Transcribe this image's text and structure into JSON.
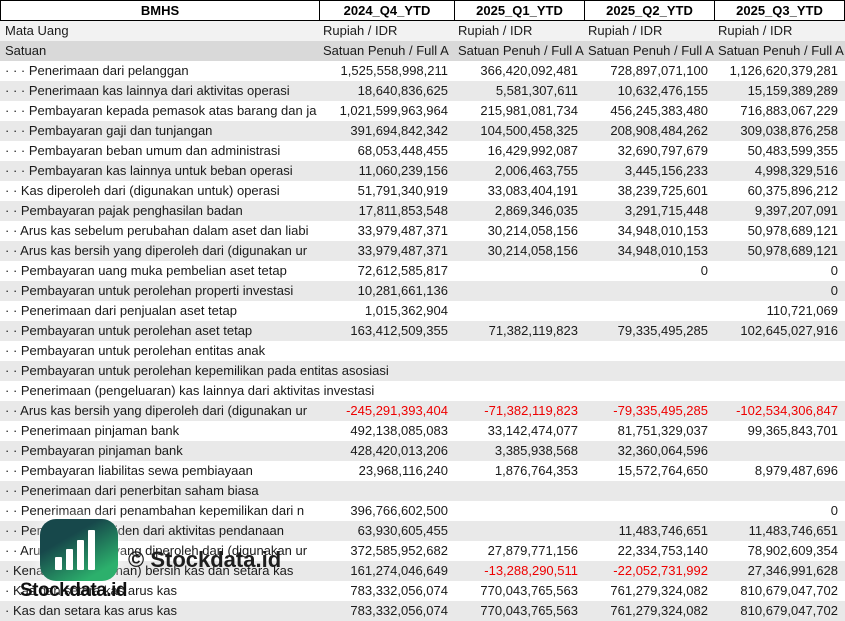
{
  "header": {
    "company": "BMHS",
    "periods": [
      "2024_Q4_YTD",
      "2025_Q1_YTD",
      "2025_Q2_YTD",
      "2025_Q3_YTD"
    ]
  },
  "currency_row": {
    "label": "Mata Uang",
    "value": "Rupiah / IDR"
  },
  "unit_row": {
    "label": "Satuan",
    "value": "Satuan Penuh / Full A"
  },
  "rows": [
    {
      "label": "· · · Penerimaan dari pelanggan",
      "values": [
        "1,525,558,998,211",
        "366,420,092,481",
        "728,897,071,100",
        "1,126,620,379,281"
      ]
    },
    {
      "label": "· · · Penerimaan kas lainnya dari aktivitas operasi",
      "values": [
        "18,640,836,625",
        "5,581,307,611",
        "10,632,476,155",
        "15,159,389,289"
      ]
    },
    {
      "label": "· · · Pembayaran kepada pemasok atas barang dan ja",
      "values": [
        "1,021,599,963,964",
        "215,981,081,734",
        "456,245,383,480",
        "716,883,067,229"
      ]
    },
    {
      "label": "· · · Pembayaran gaji dan tunjangan",
      "values": [
        "391,694,842,342",
        "104,500,458,325",
        "208,908,484,262",
        "309,038,876,258"
      ]
    },
    {
      "label": "· · · Pembayaran beban umum dan administrasi",
      "values": [
        "68,053,448,455",
        "16,429,992,087",
        "32,690,797,679",
        "50,483,599,355"
      ]
    },
    {
      "label": "· · · Pembayaran kas lainnya untuk beban operasi",
      "values": [
        "11,060,239,156",
        "2,006,463,755",
        "3,445,156,233",
        "4,998,329,516"
      ]
    },
    {
      "label": "· · Kas diperoleh dari (digunakan untuk) operasi",
      "values": [
        "51,791,340,919",
        "33,083,404,191",
        "38,239,725,601",
        "60,375,896,212"
      ]
    },
    {
      "label": "· · Pembayaran pajak penghasilan badan",
      "values": [
        "17,811,853,548",
        "2,869,346,035",
        "3,291,715,448",
        "9,397,207,091"
      ]
    },
    {
      "label": "· · Arus kas sebelum perubahan dalam aset dan liabi",
      "values": [
        "33,979,487,371",
        "30,214,058,156",
        "34,948,010,153",
        "50,978,689,121"
      ]
    },
    {
      "label": "· · Arus kas bersih yang diperoleh dari (digunakan ur",
      "values": [
        "33,979,487,371",
        "30,214,058,156",
        "34,948,010,153",
        "50,978,689,121"
      ]
    },
    {
      "label": "· · Pembayaran uang muka pembelian aset tetap",
      "values": [
        "72,612,585,817",
        "",
        "0",
        "0"
      ]
    },
    {
      "label": "· · Pembayaran untuk perolehan properti investasi",
      "values": [
        "10,281,661,136",
        "",
        "",
        "0"
      ]
    },
    {
      "label": "· · Penerimaan dari penjualan aset tetap",
      "values": [
        "1,015,362,904",
        "",
        "",
        "110,721,069"
      ]
    },
    {
      "label": "· · Pembayaran untuk perolehan aset tetap",
      "values": [
        "163,412,509,355",
        "71,382,119,823",
        "79,335,495,285",
        "102,645,027,916"
      ]
    },
    {
      "label": "· · Pembayaran untuk perolehan entitas anak",
      "values": [
        "",
        "",
        "",
        ""
      ]
    },
    {
      "label": "· · Pembayaran untuk perolehan kepemilikan pada entitas asosiasi",
      "values": [
        "",
        "",
        "",
        ""
      ]
    },
    {
      "label": "· · Penerimaan (pengeluaran) kas lainnya dari aktivitas investasi",
      "values": [
        "",
        "",
        "",
        ""
      ]
    },
    {
      "label": "· · Arus kas bersih yang diperoleh dari (digunakan ur",
      "values": [
        "-245,291,393,404",
        "-71,382,119,823",
        "-79,335,495,285",
        "-102,534,306,847"
      ]
    },
    {
      "label": "· · Penerimaan pinjaman bank",
      "values": [
        "492,138,085,083",
        "33,142,474,077",
        "81,751,329,037",
        "99,365,843,701"
      ]
    },
    {
      "label": "· · Pembayaran pinjaman bank",
      "values": [
        "428,420,013,206",
        "3,385,938,568",
        "32,360,064,596",
        ""
      ]
    },
    {
      "label": "· · Pembayaran liabilitas sewa pembiayaan",
      "values": [
        "23,968,116,240",
        "1,876,764,353",
        "15,572,764,650",
        "8,979,487,696"
      ]
    },
    {
      "label": "· · Penerimaan dari penerbitan saham biasa",
      "values": [
        "",
        "",
        "",
        ""
      ]
    },
    {
      "label": "· · Penerimaan dari penambahan kepemilikan dari n",
      "values": [
        "396,766,602,500",
        "",
        "",
        "0"
      ]
    },
    {
      "label": "· · Pembayaran dividen dari aktivitas pendanaan",
      "values": [
        "63,930,605,455",
        "",
        "11,483,746,651",
        "11,483,746,651"
      ]
    },
    {
      "label": "· · Arus kas bersih yang diperoleh dari (digunakan ur",
      "values": [
        "372,585,952,682",
        "27,879,771,156",
        "22,334,753,140",
        "78,902,609,354"
      ]
    },
    {
      "label": "· Kenaikan (penurunan) bersih kas dan setara kas",
      "values": [
        "161,274,046,649",
        "-13,288,290,511",
        "-22,052,731,992",
        "27,346,991,628"
      ]
    },
    {
      "label": "· Kas dan setara kas arus kas",
      "values": [
        "783,332,056,074",
        "770,043,765,563",
        "761,279,324,082",
        "810,679,047,702"
      ]
    },
    {
      "label": "· Kas dan setara kas arus kas",
      "values": [
        "783,332,056,074",
        "770,043,765,563",
        "761,279,324,082",
        "810,679,047,702"
      ]
    }
  ],
  "watermark": {
    "copyright": "© Stockdata.id",
    "brand": "Stockdata.id",
    "logo": "stockdata-bar-chart-logo"
  },
  "colors": {
    "negative": "#ee0000",
    "stripe": "#e9e9e9",
    "unit_row_bg": "#d9d9d9",
    "currency_row_bg": "#f2f2f2",
    "logo_teal": "#17484b",
    "logo_green": "#2cb06c"
  }
}
